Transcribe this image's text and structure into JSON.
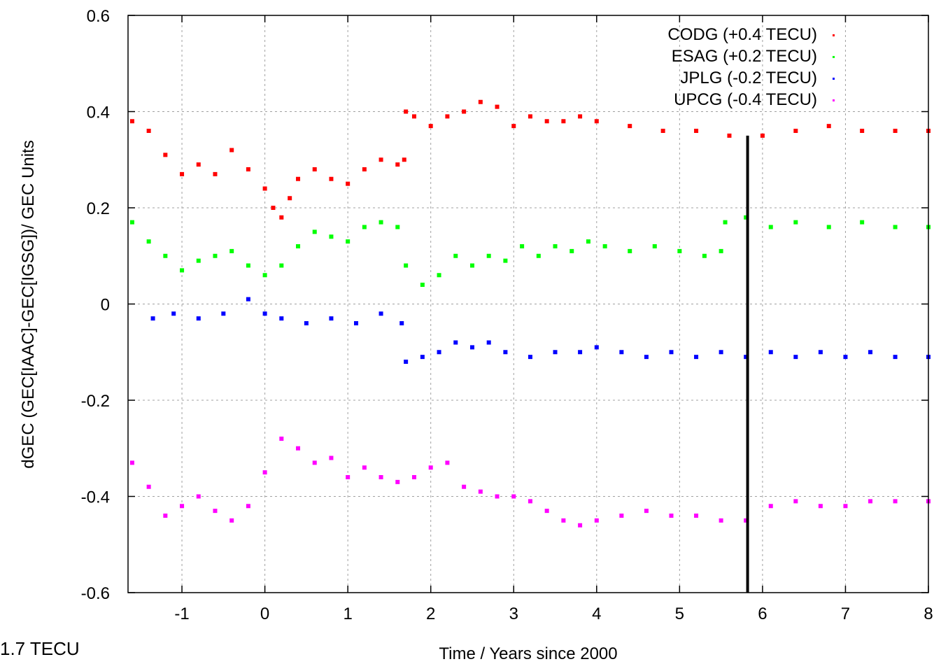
{
  "chart_data": {
    "type": "scatter",
    "title": "",
    "xlabel": "Time / Years since 2000",
    "ylabel": "dGEC (GEC[IAAC]-GEC[IGSG])/ GEC Units",
    "xlim": [
      -1.65,
      8
    ],
    "ylim": [
      -0.6,
      0.6
    ],
    "xticks": [
      "-1",
      "0",
      "1",
      "2",
      "3",
      "4",
      "5",
      "6",
      "7",
      "8"
    ],
    "yticks": [
      "0.6",
      "0.4",
      "0.2",
      "0",
      "-0.2",
      "-0.4",
      "-0.6"
    ],
    "grid": true,
    "legend_position": "top-right",
    "marker_year": 5.82,
    "series": [
      {
        "name": "CODG (+0.4 TECU)",
        "color": "#ff0000",
        "points": [
          [
            -1.6,
            0.38
          ],
          [
            -1.4,
            0.36
          ],
          [
            -1.2,
            0.31
          ],
          [
            -1.0,
            0.27
          ],
          [
            -0.8,
            0.29
          ],
          [
            -0.6,
            0.27
          ],
          [
            -0.4,
            0.32
          ],
          [
            -0.2,
            0.28
          ],
          [
            0.0,
            0.24
          ],
          [
            0.1,
            0.2
          ],
          [
            0.2,
            0.18
          ],
          [
            0.3,
            0.22
          ],
          [
            0.4,
            0.26
          ],
          [
            0.6,
            0.28
          ],
          [
            0.8,
            0.26
          ],
          [
            1.0,
            0.25
          ],
          [
            1.2,
            0.28
          ],
          [
            1.4,
            0.3
          ],
          [
            1.6,
            0.29
          ],
          [
            1.68,
            0.3
          ],
          [
            1.7,
            0.4
          ],
          [
            1.8,
            0.39
          ],
          [
            2.0,
            0.37
          ],
          [
            2.2,
            0.39
          ],
          [
            2.4,
            0.4
          ],
          [
            2.6,
            0.42
          ],
          [
            2.8,
            0.41
          ],
          [
            3.0,
            0.37
          ],
          [
            3.2,
            0.39
          ],
          [
            3.4,
            0.38
          ],
          [
            3.6,
            0.38
          ],
          [
            3.8,
            0.39
          ],
          [
            4.0,
            0.38
          ],
          [
            4.4,
            0.37
          ],
          [
            4.8,
            0.36
          ],
          [
            5.2,
            0.36
          ],
          [
            5.6,
            0.35
          ],
          [
            6.0,
            0.35
          ],
          [
            6.4,
            0.36
          ],
          [
            6.8,
            0.37
          ],
          [
            7.2,
            0.36
          ],
          [
            7.6,
            0.36
          ],
          [
            8.0,
            0.36
          ]
        ]
      },
      {
        "name": "ESAG (+0.2 TECU)",
        "color": "#00ff00",
        "points": [
          [
            -1.6,
            0.17
          ],
          [
            -1.4,
            0.13
          ],
          [
            -1.2,
            0.1
          ],
          [
            -1.0,
            0.07
          ],
          [
            -0.8,
            0.09
          ],
          [
            -0.6,
            0.1
          ],
          [
            -0.4,
            0.11
          ],
          [
            -0.2,
            0.08
          ],
          [
            0.0,
            0.06
          ],
          [
            0.2,
            0.08
          ],
          [
            0.4,
            0.12
          ],
          [
            0.6,
            0.15
          ],
          [
            0.8,
            0.14
          ],
          [
            1.0,
            0.13
          ],
          [
            1.2,
            0.16
          ],
          [
            1.4,
            0.17
          ],
          [
            1.6,
            0.16
          ],
          [
            1.7,
            0.08
          ],
          [
            1.9,
            0.04
          ],
          [
            2.1,
            0.06
          ],
          [
            2.3,
            0.1
          ],
          [
            2.5,
            0.08
          ],
          [
            2.7,
            0.1
          ],
          [
            2.9,
            0.09
          ],
          [
            3.1,
            0.12
          ],
          [
            3.3,
            0.1
          ],
          [
            3.5,
            0.12
          ],
          [
            3.7,
            0.11
          ],
          [
            3.9,
            0.13
          ],
          [
            4.1,
            0.12
          ],
          [
            4.4,
            0.11
          ],
          [
            4.7,
            0.12
          ],
          [
            5.0,
            0.11
          ],
          [
            5.3,
            0.1
          ],
          [
            5.5,
            0.11
          ],
          [
            5.55,
            0.17
          ],
          [
            5.8,
            0.18
          ],
          [
            6.1,
            0.16
          ],
          [
            6.4,
            0.17
          ],
          [
            6.8,
            0.16
          ],
          [
            7.2,
            0.17
          ],
          [
            7.6,
            0.16
          ],
          [
            8.0,
            0.16
          ]
        ]
      },
      {
        "name": "JPLG (-0.2 TECU)",
        "color": "#0000ff",
        "points": [
          [
            -1.35,
            -0.03
          ],
          [
            -1.1,
            -0.02
          ],
          [
            -0.8,
            -0.03
          ],
          [
            -0.5,
            -0.02
          ],
          [
            -0.2,
            0.01
          ],
          [
            0.0,
            -0.02
          ],
          [
            0.2,
            -0.03
          ],
          [
            0.5,
            -0.04
          ],
          [
            0.8,
            -0.03
          ],
          [
            1.1,
            -0.04
          ],
          [
            1.4,
            -0.02
          ],
          [
            1.65,
            -0.04
          ],
          [
            1.7,
            -0.12
          ],
          [
            1.9,
            -0.11
          ],
          [
            2.1,
            -0.1
          ],
          [
            2.3,
            -0.08
          ],
          [
            2.5,
            -0.09
          ],
          [
            2.7,
            -0.08
          ],
          [
            2.9,
            -0.1
          ],
          [
            3.2,
            -0.11
          ],
          [
            3.5,
            -0.1
          ],
          [
            3.8,
            -0.1
          ],
          [
            4.0,
            -0.09
          ],
          [
            4.3,
            -0.1
          ],
          [
            4.6,
            -0.11
          ],
          [
            4.9,
            -0.1
          ],
          [
            5.2,
            -0.11
          ],
          [
            5.5,
            -0.1
          ],
          [
            5.8,
            -0.11
          ],
          [
            6.1,
            -0.1
          ],
          [
            6.4,
            -0.11
          ],
          [
            6.7,
            -0.1
          ],
          [
            7.0,
            -0.11
          ],
          [
            7.3,
            -0.1
          ],
          [
            7.6,
            -0.11
          ],
          [
            8.0,
            -0.11
          ]
        ]
      },
      {
        "name": "UPCG (-0.4 TECU)",
        "color": "#ff00ff",
        "points": [
          [
            -1.6,
            -0.33
          ],
          [
            -1.4,
            -0.38
          ],
          [
            -1.2,
            -0.44
          ],
          [
            -1.0,
            -0.42
          ],
          [
            -0.8,
            -0.4
          ],
          [
            -0.6,
            -0.43
          ],
          [
            -0.4,
            -0.45
          ],
          [
            -0.2,
            -0.42
          ],
          [
            0.0,
            -0.35
          ],
          [
            0.2,
            -0.28
          ],
          [
            0.4,
            -0.3
          ],
          [
            0.6,
            -0.33
          ],
          [
            0.8,
            -0.32
          ],
          [
            1.0,
            -0.36
          ],
          [
            1.2,
            -0.34
          ],
          [
            1.4,
            -0.36
          ],
          [
            1.6,
            -0.37
          ],
          [
            1.8,
            -0.36
          ],
          [
            2.0,
            -0.34
          ],
          [
            2.2,
            -0.33
          ],
          [
            2.4,
            -0.38
          ],
          [
            2.6,
            -0.39
          ],
          [
            2.8,
            -0.4
          ],
          [
            3.0,
            -0.4
          ],
          [
            3.2,
            -0.41
          ],
          [
            3.4,
            -0.43
          ],
          [
            3.6,
            -0.45
          ],
          [
            3.8,
            -0.46
          ],
          [
            4.0,
            -0.45
          ],
          [
            4.3,
            -0.44
          ],
          [
            4.6,
            -0.43
          ],
          [
            4.9,
            -0.44
          ],
          [
            5.2,
            -0.44
          ],
          [
            5.5,
            -0.45
          ],
          [
            5.8,
            -0.45
          ],
          [
            6.1,
            -0.42
          ],
          [
            6.4,
            -0.41
          ],
          [
            6.7,
            -0.42
          ],
          [
            7.0,
            -0.42
          ],
          [
            7.3,
            -0.41
          ],
          [
            7.6,
            -0.41
          ],
          [
            8.0,
            -0.41
          ]
        ]
      }
    ]
  },
  "corner_note": "1.7 TECU"
}
